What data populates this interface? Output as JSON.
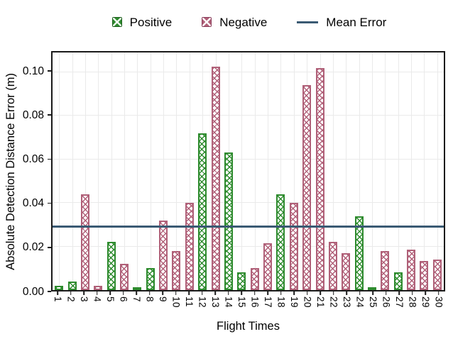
{
  "chart_data": {
    "type": "bar",
    "title": "",
    "xlabel": "Flight Times",
    "ylabel": "Absolute Detection Distance Error (m)",
    "categories": [
      "1",
      "2",
      "3",
      "4",
      "5",
      "6",
      "7",
      "8",
      "9",
      "10",
      "11",
      "12",
      "13",
      "14",
      "15",
      "16",
      "17",
      "18",
      "19",
      "20",
      "21",
      "22",
      "23",
      "24",
      "25",
      "26",
      "27",
      "28",
      "29",
      "30"
    ],
    "values": [
      0.002,
      0.004,
      0.044,
      0.002,
      0.022,
      0.012,
      0.0005,
      0.01,
      0.032,
      0.018,
      0.04,
      0.072,
      0.1025,
      0.063,
      0.008,
      0.01,
      0.0215,
      0.044,
      0.04,
      0.094,
      0.102,
      0.022,
      0.017,
      0.034,
      0.0005,
      0.018,
      0.008,
      0.0185,
      0.0135,
      0.014
    ],
    "signs": [
      "positive",
      "positive",
      "negative",
      "negative",
      "positive",
      "negative",
      "positive",
      "positive",
      "negative",
      "negative",
      "negative",
      "positive",
      "negative",
      "positive",
      "positive",
      "negative",
      "negative",
      "positive",
      "negative",
      "negative",
      "negative",
      "negative",
      "negative",
      "positive",
      "positive",
      "negative",
      "positive",
      "negative",
      "negative",
      "negative"
    ],
    "mean_error": 0.029,
    "ylim": [
      0,
      0.109
    ],
    "yticks": [
      {
        "value": 0.0,
        "label": "0.00"
      },
      {
        "value": 0.02,
        "label": "0.02"
      },
      {
        "value": 0.04,
        "label": "0.04"
      },
      {
        "value": 0.06,
        "label": "0.06"
      },
      {
        "value": 0.08,
        "label": "0.08"
      },
      {
        "value": 0.1,
        "label": "0.10"
      }
    ],
    "grid": true,
    "legend": {
      "position": "top",
      "positive_label": "Positive",
      "negative_label": "Negative",
      "mean_label": "Mean Error"
    },
    "colors": {
      "positive": "#2e8b2e",
      "positive_dark": "#1d5e1d",
      "negative": "#b06078",
      "negative_dark": "#8a3d5b",
      "mean_line": "#3a5a73",
      "grid": "#eaeaea",
      "spine": "#1a1a1a"
    }
  }
}
